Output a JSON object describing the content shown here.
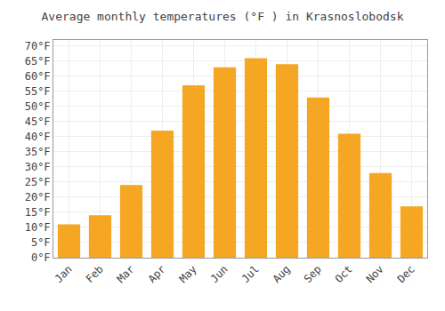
{
  "chart_data": {
    "type": "bar",
    "title": "Average monthly temperatures (°F ) in Krasnoslobodsk",
    "categories": [
      "Jan",
      "Feb",
      "Mar",
      "Apr",
      "May",
      "Jun",
      "Jul",
      "Aug",
      "Sep",
      "Oct",
      "Nov",
      "Dec"
    ],
    "values": [
      11,
      14,
      24,
      42,
      57,
      63,
      66,
      64,
      53,
      41,
      28,
      17
    ],
    "color": "#F5A623",
    "ylim": [
      0,
      72
    ],
    "yticks": [
      {
        "value": 0,
        "label": "0°F"
      },
      {
        "value": 5,
        "label": "5°F"
      },
      {
        "value": 10,
        "label": "10°F"
      },
      {
        "value": 15,
        "label": "15°F"
      },
      {
        "value": 20,
        "label": "20°F"
      },
      {
        "value": 25,
        "label": "25°F"
      },
      {
        "value": 30,
        "label": "30°F"
      },
      {
        "value": 35,
        "label": "35°F"
      },
      {
        "value": 40,
        "label": "40°F"
      },
      {
        "value": 45,
        "label": "45°F"
      },
      {
        "value": 50,
        "label": "50°F"
      },
      {
        "value": 55,
        "label": "55°F"
      },
      {
        "value": 60,
        "label": "60°F"
      },
      {
        "value": 65,
        "label": "65°F"
      },
      {
        "value": 70,
        "label": "70°F"
      }
    ],
    "grid": true
  }
}
